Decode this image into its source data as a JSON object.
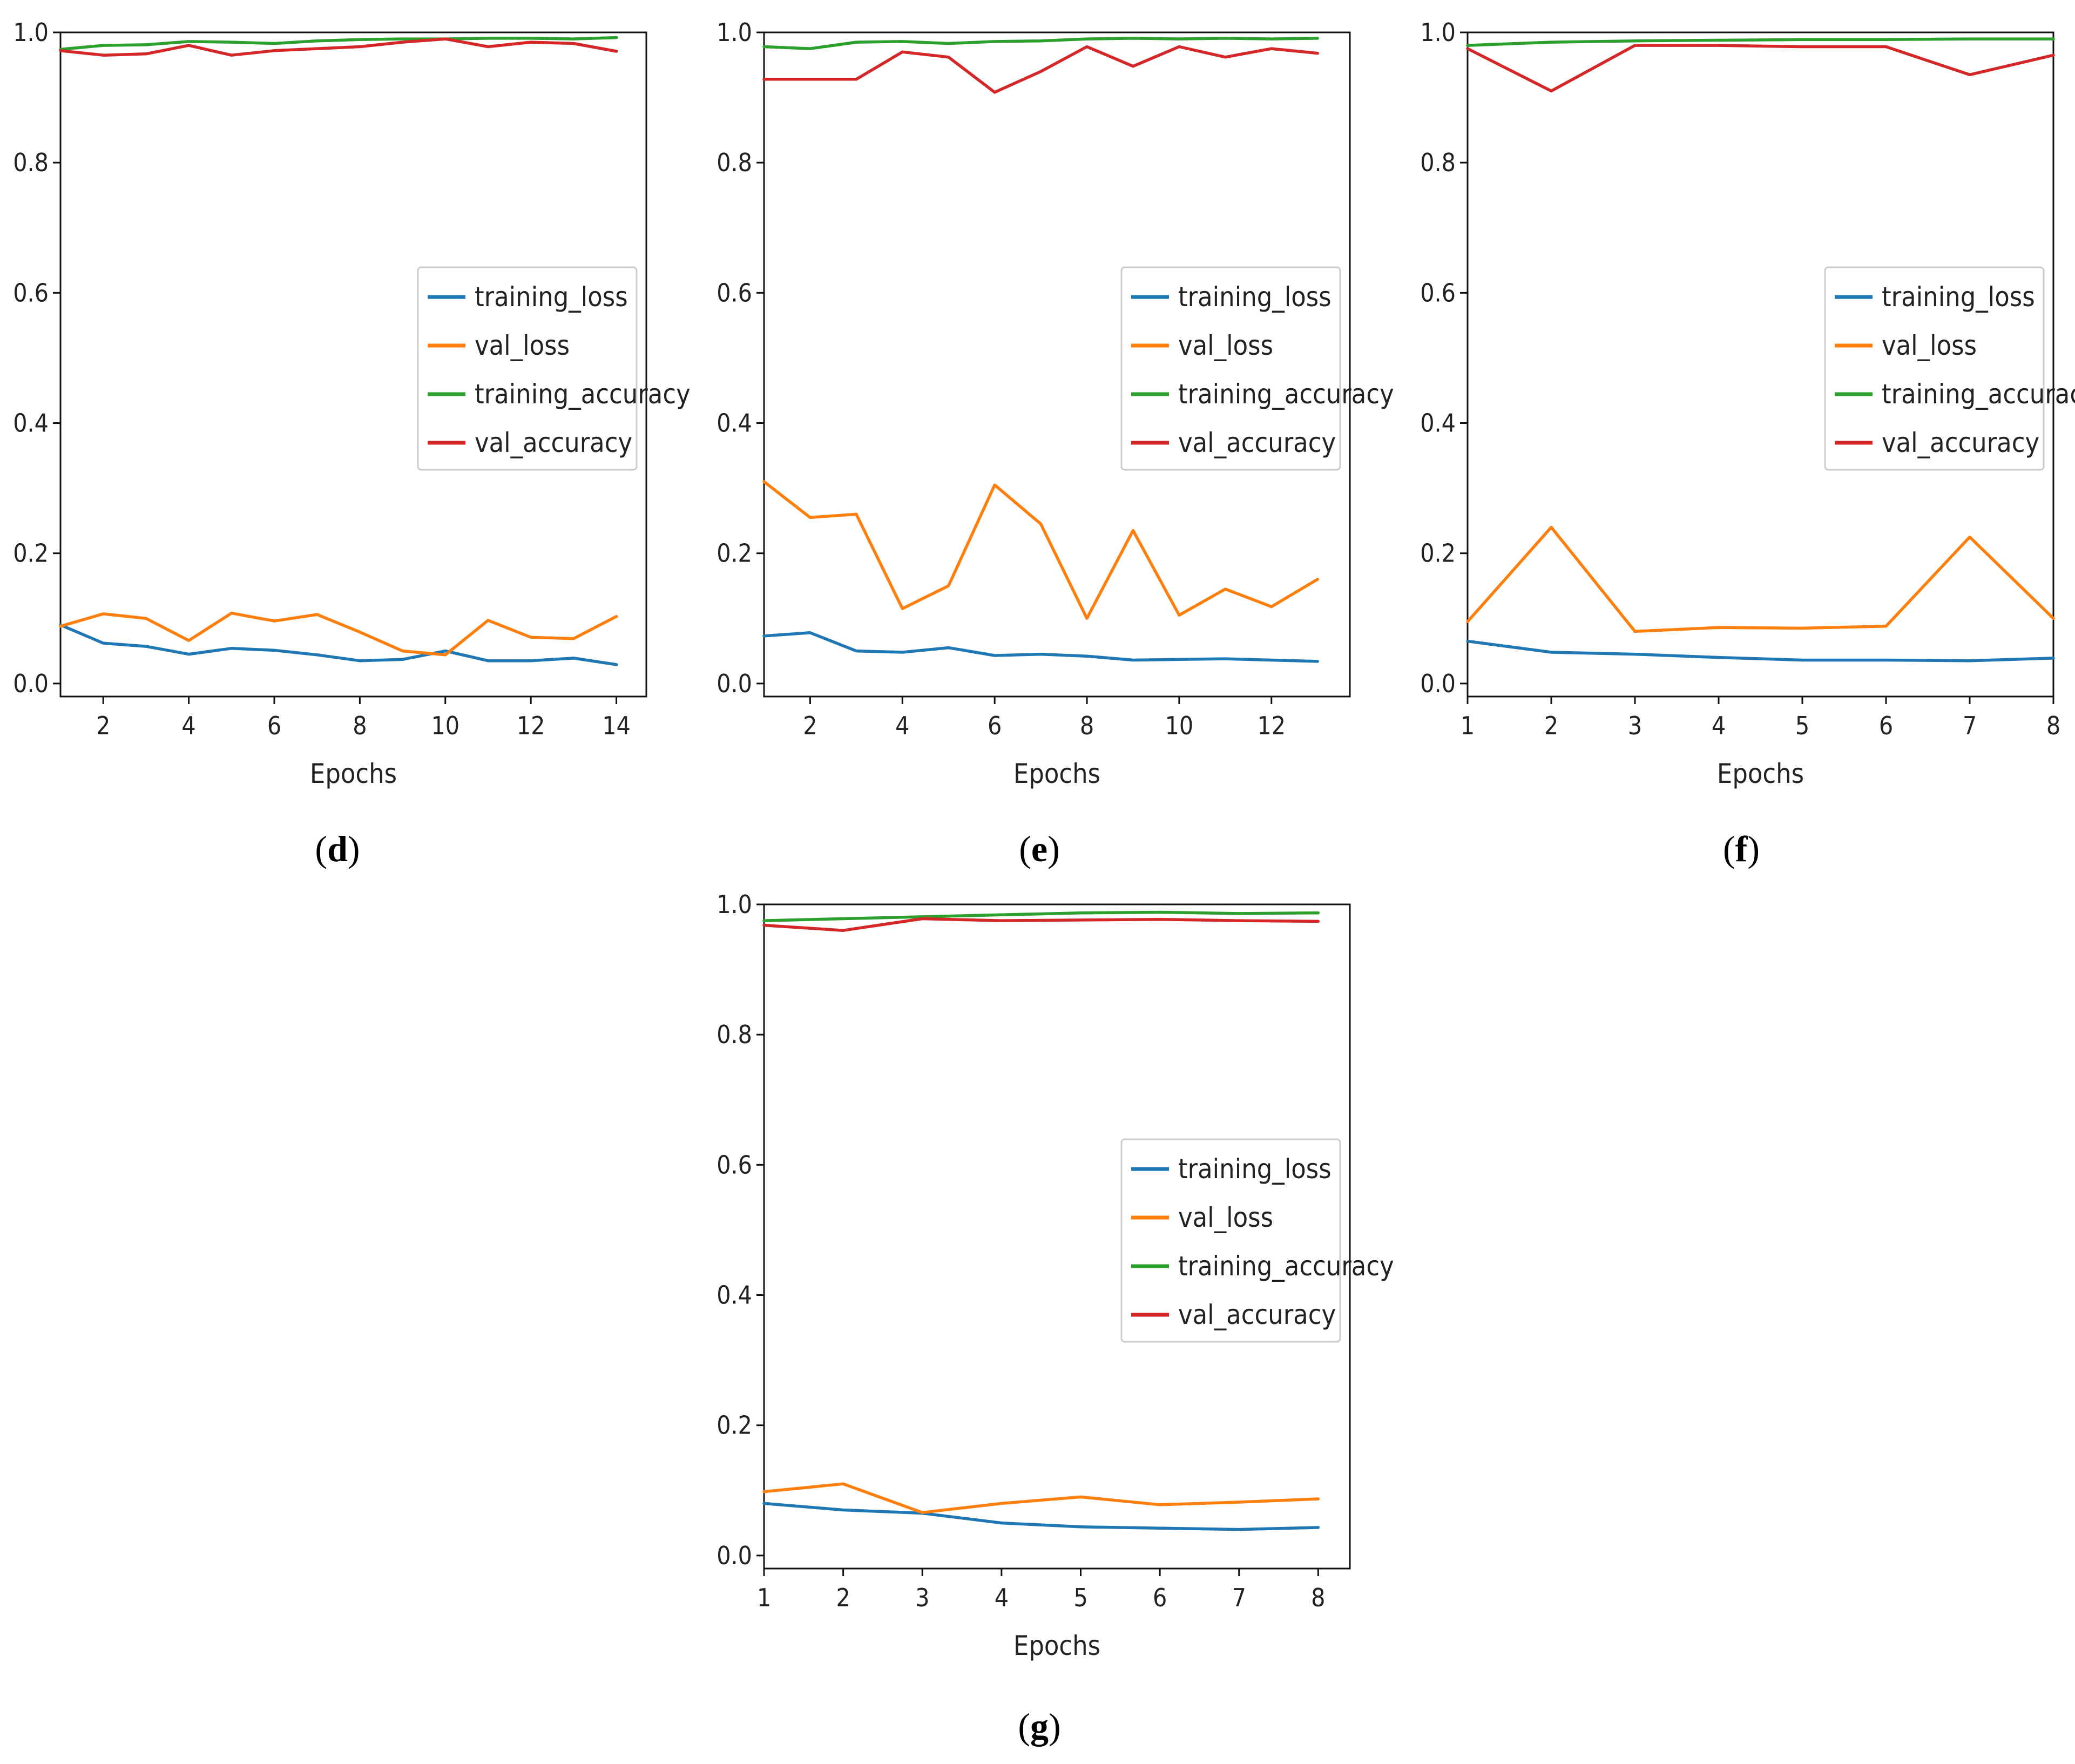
{
  "colors": {
    "training_loss": "#1f77b4",
    "val_loss": "#ff7f0e",
    "training_accuracy": "#2ca02c",
    "val_accuracy": "#d62728"
  },
  "chart_data": [
    {
      "id": "d",
      "type": "line",
      "panel_label": "d",
      "xlabel": "Epochs",
      "ylabel": "",
      "xlim": [
        1,
        14.7
      ],
      "ylim": [
        -0.02,
        1.0
      ],
      "xticks": [
        2,
        4,
        6,
        8,
        10,
        12,
        14
      ],
      "yticks": [
        0.0,
        0.2,
        0.4,
        0.6,
        0.8,
        1.0
      ],
      "ytick_labels": [
        "0.0",
        "0.2",
        "0.4",
        "0.6",
        "0.8",
        "1.0"
      ],
      "legend_position": "center-right",
      "x": [
        1,
        2,
        3,
        4,
        5,
        6,
        7,
        8,
        9,
        10,
        11,
        12,
        13,
        14
      ],
      "series": [
        {
          "key": "training_loss",
          "name": "training_loss",
          "values": [
            0.09,
            0.062,
            0.057,
            0.045,
            0.054,
            0.051,
            0.044,
            0.035,
            0.037,
            0.05,
            0.035,
            0.035,
            0.039,
            0.029
          ]
        },
        {
          "key": "val_loss",
          "name": "val_loss",
          "values": [
            0.088,
            0.107,
            0.1,
            0.066,
            0.108,
            0.096,
            0.106,
            0.079,
            0.05,
            0.044,
            0.097,
            0.071,
            0.069,
            0.103
          ]
        },
        {
          "key": "training_accuracy",
          "name": "training_accuracy",
          "values": [
            0.974,
            0.98,
            0.981,
            0.986,
            0.985,
            0.983,
            0.987,
            0.989,
            0.99,
            0.99,
            0.991,
            0.991,
            0.99,
            0.992
          ]
        },
        {
          "key": "val_accuracy",
          "name": "val_accuracy",
          "values": [
            0.972,
            0.965,
            0.967,
            0.98,
            0.965,
            0.972,
            0.975,
            0.978,
            0.985,
            0.99,
            0.978,
            0.985,
            0.983,
            0.971
          ]
        }
      ]
    },
    {
      "id": "e",
      "type": "line",
      "panel_label": "e",
      "xlabel": "Epochs",
      "ylabel": "",
      "xlim": [
        1,
        13.7
      ],
      "ylim": [
        -0.02,
        1.0
      ],
      "xticks": [
        2,
        4,
        6,
        8,
        10,
        12
      ],
      "yticks": [
        0.0,
        0.2,
        0.4,
        0.6,
        0.8,
        1.0
      ],
      "ytick_labels": [
        "0.0",
        "0.2",
        "0.4",
        "0.6",
        "0.8",
        "1.0"
      ],
      "legend_position": "center-right",
      "x": [
        1,
        2,
        3,
        4,
        5,
        6,
        7,
        8,
        9,
        10,
        11,
        12,
        13
      ],
      "series": [
        {
          "key": "training_loss",
          "name": "training_loss",
          "values": [
            0.073,
            0.078,
            0.05,
            0.048,
            0.055,
            0.043,
            0.045,
            0.042,
            0.036,
            0.037,
            0.038,
            0.036,
            0.034
          ]
        },
        {
          "key": "val_loss",
          "name": "val_loss",
          "values": [
            0.31,
            0.255,
            0.26,
            0.115,
            0.15,
            0.305,
            0.245,
            0.1,
            0.235,
            0.105,
            0.145,
            0.118,
            0.16
          ]
        },
        {
          "key": "training_accuracy",
          "name": "training_accuracy",
          "values": [
            0.978,
            0.975,
            0.985,
            0.986,
            0.983,
            0.986,
            0.987,
            0.99,
            0.991,
            0.99,
            0.991,
            0.99,
            0.991
          ]
        },
        {
          "key": "val_accuracy",
          "name": "val_accuracy",
          "values": [
            0.928,
            0.928,
            0.928,
            0.97,
            0.962,
            0.908,
            0.94,
            0.978,
            0.948,
            0.978,
            0.962,
            0.975,
            0.968
          ]
        }
      ]
    },
    {
      "id": "f",
      "type": "line",
      "panel_label": "f",
      "xlabel": "Epochs",
      "ylabel": "",
      "xlim": [
        1,
        8
      ],
      "ylim": [
        -0.02,
        1.0
      ],
      "xticks": [
        1,
        2,
        3,
        4,
        5,
        6,
        7,
        8
      ],
      "yticks": [
        0.0,
        0.2,
        0.4,
        0.6,
        0.8,
        1.0
      ],
      "ytick_labels": [
        "0.0",
        "0.2",
        "0.4",
        "0.6",
        "0.8",
        "1.0"
      ],
      "legend_position": "center-right",
      "x": [
        1,
        2,
        3,
        4,
        5,
        6,
        7,
        8
      ],
      "series": [
        {
          "key": "training_loss",
          "name": "training_loss",
          "values": [
            0.065,
            0.048,
            0.045,
            0.04,
            0.036,
            0.036,
            0.035,
            0.039
          ]
        },
        {
          "key": "val_loss",
          "name": "val_loss",
          "values": [
            0.095,
            0.24,
            0.08,
            0.086,
            0.085,
            0.088,
            0.225,
            0.1
          ]
        },
        {
          "key": "training_accuracy",
          "name": "training_accuracy",
          "values": [
            0.98,
            0.985,
            0.987,
            0.988,
            0.989,
            0.989,
            0.99,
            0.99
          ]
        },
        {
          "key": "val_accuracy",
          "name": "val_accuracy",
          "values": [
            0.975,
            0.91,
            0.98,
            0.98,
            0.978,
            0.978,
            0.935,
            0.965
          ]
        }
      ]
    },
    {
      "id": "g",
      "type": "line",
      "panel_label": "g",
      "xlabel": "Epochs",
      "ylabel": "",
      "xlim": [
        1,
        8.4
      ],
      "ylim": [
        -0.02,
        1.0
      ],
      "xticks": [
        1,
        2,
        3,
        4,
        5,
        6,
        7,
        8
      ],
      "yticks": [
        0.0,
        0.2,
        0.4,
        0.6,
        0.8,
        1.0
      ],
      "ytick_labels": [
        "0.0",
        "0.2",
        "0.4",
        "0.6",
        "0.8",
        "1.0"
      ],
      "legend_position": "center-right",
      "x": [
        1,
        2,
        3,
        4,
        5,
        6,
        7,
        8
      ],
      "series": [
        {
          "key": "training_loss",
          "name": "training_loss",
          "values": [
            0.08,
            0.07,
            0.065,
            0.05,
            0.044,
            0.042,
            0.04,
            0.043
          ]
        },
        {
          "key": "val_loss",
          "name": "val_loss",
          "values": [
            0.098,
            0.11,
            0.066,
            0.08,
            0.09,
            0.078,
            0.082,
            0.087
          ]
        },
        {
          "key": "training_accuracy",
          "name": "training_accuracy",
          "values": [
            0.975,
            0.978,
            0.981,
            0.984,
            0.987,
            0.988,
            0.986,
            0.987
          ]
        },
        {
          "key": "val_accuracy",
          "name": "val_accuracy",
          "values": [
            0.968,
            0.96,
            0.978,
            0.975,
            0.976,
            0.977,
            0.975,
            0.974
          ]
        }
      ]
    }
  ]
}
